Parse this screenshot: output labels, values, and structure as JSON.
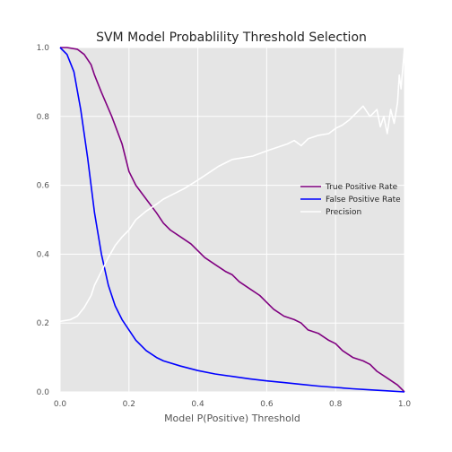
{
  "chart_data": {
    "type": "line",
    "title": "SVM Model Probablility Threshold Selection",
    "xlabel": "Model P(Positive) Threshold",
    "ylabel": "",
    "xlim": [
      0,
      1
    ],
    "ylim": [
      0,
      1
    ],
    "xticks": [
      "0.0",
      "0.2",
      "0.4",
      "0.6",
      "0.8",
      "1.0"
    ],
    "yticks": [
      "0.0",
      "0.2",
      "0.4",
      "0.6",
      "0.8",
      "1.0"
    ],
    "grid": true,
    "legend_position": "center-right",
    "background": "#e5e5e5",
    "series": [
      {
        "name": "True Positive Rate",
        "color": "#800080",
        "x": [
          0.0,
          0.02,
          0.05,
          0.07,
          0.09,
          0.1,
          0.12,
          0.15,
          0.18,
          0.2,
          0.22,
          0.25,
          0.28,
          0.3,
          0.32,
          0.35,
          0.38,
          0.4,
          0.42,
          0.45,
          0.48,
          0.5,
          0.52,
          0.55,
          0.58,
          0.6,
          0.62,
          0.65,
          0.68,
          0.7,
          0.72,
          0.75,
          0.78,
          0.8,
          0.82,
          0.85,
          0.88,
          0.9,
          0.92,
          0.95,
          0.98,
          1.0
        ],
        "y": [
          1.0,
          1.0,
          0.995,
          0.98,
          0.95,
          0.92,
          0.87,
          0.8,
          0.72,
          0.64,
          0.6,
          0.56,
          0.52,
          0.49,
          0.47,
          0.45,
          0.43,
          0.41,
          0.39,
          0.37,
          0.35,
          0.34,
          0.32,
          0.3,
          0.28,
          0.26,
          0.24,
          0.22,
          0.21,
          0.2,
          0.18,
          0.17,
          0.15,
          0.14,
          0.12,
          0.1,
          0.09,
          0.08,
          0.06,
          0.04,
          0.02,
          0.0
        ]
      },
      {
        "name": "False Positive Rate",
        "color": "#0000ff",
        "x": [
          0.0,
          0.02,
          0.04,
          0.06,
          0.08,
          0.1,
          0.12,
          0.14,
          0.16,
          0.18,
          0.2,
          0.22,
          0.25,
          0.28,
          0.3,
          0.35,
          0.4,
          0.45,
          0.5,
          0.55,
          0.6,
          0.65,
          0.7,
          0.75,
          0.8,
          0.85,
          0.9,
          0.95,
          1.0
        ],
        "y": [
          1.0,
          0.98,
          0.93,
          0.82,
          0.68,
          0.52,
          0.4,
          0.31,
          0.25,
          0.21,
          0.18,
          0.15,
          0.12,
          0.1,
          0.09,
          0.075,
          0.062,
          0.052,
          0.045,
          0.038,
          0.032,
          0.027,
          0.022,
          0.017,
          0.013,
          0.009,
          0.006,
          0.003,
          0.0
        ]
      },
      {
        "name": "Precision",
        "color": "#ffffff",
        "x": [
          0.0,
          0.03,
          0.05,
          0.07,
          0.09,
          0.1,
          0.12,
          0.14,
          0.16,
          0.18,
          0.2,
          0.22,
          0.25,
          0.28,
          0.3,
          0.33,
          0.36,
          0.4,
          0.43,
          0.46,
          0.5,
          0.53,
          0.56,
          0.6,
          0.63,
          0.66,
          0.68,
          0.7,
          0.72,
          0.75,
          0.78,
          0.8,
          0.82,
          0.84,
          0.86,
          0.88,
          0.9,
          0.92,
          0.93,
          0.94,
          0.95,
          0.96,
          0.97,
          0.98,
          0.985,
          0.99,
          1.0
        ],
        "y": [
          0.205,
          0.21,
          0.22,
          0.245,
          0.28,
          0.31,
          0.35,
          0.39,
          0.425,
          0.45,
          0.47,
          0.5,
          0.525,
          0.545,
          0.56,
          0.575,
          0.59,
          0.615,
          0.635,
          0.655,
          0.675,
          0.68,
          0.685,
          0.7,
          0.71,
          0.72,
          0.73,
          0.715,
          0.735,
          0.745,
          0.75,
          0.765,
          0.775,
          0.79,
          0.81,
          0.83,
          0.8,
          0.82,
          0.77,
          0.8,
          0.75,
          0.82,
          0.78,
          0.84,
          0.92,
          0.88,
          1.0
        ]
      }
    ]
  }
}
